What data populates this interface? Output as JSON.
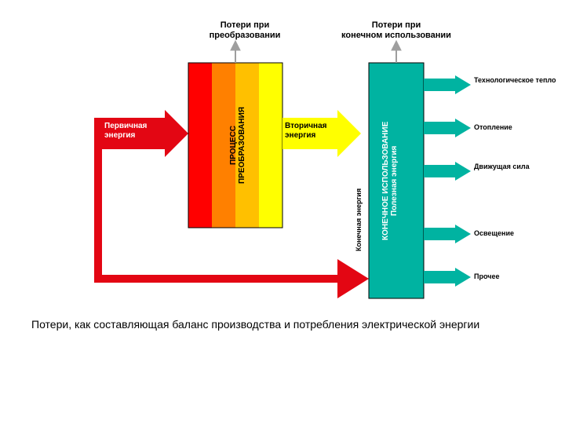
{
  "type": "infographic",
  "background_color": "#ffffff",
  "caption": "Потери, как составляющая баланс производства и потребления электрической энергии",
  "caption_fontsize": 14,
  "colors": {
    "red_dark": "#e30613",
    "red": "#ff0000",
    "orange": "#ff8000",
    "yellow_orange": "#ffc000",
    "yellow": "#ffff00",
    "teal": "#00b3a1",
    "teal_dark": "#008f82",
    "black": "#000000",
    "grey_arrow": "#9e9e9e"
  },
  "loss_labels": {
    "transform": "Потери при\nпреобразовании",
    "enduse": "Потери при\nконечном использовании"
  },
  "input_arrow": {
    "label": "Первичная\nэнергия",
    "color": "#e30613",
    "text_color": "#ffffff",
    "fontsize": 10
  },
  "transform_box": {
    "title_line1": "ПРОЦЕСС",
    "title_line2": "ПРЕОБРАЗОВАНИЯ",
    "stripe_colors": [
      "#ff0000",
      "#ff8000",
      "#ffc000",
      "#ffff00"
    ],
    "text_color": "#000000",
    "fontsize": 10
  },
  "secondary_arrow": {
    "label": "Вторичная\nэнергия",
    "color": "#ffff00",
    "text_color": "#000000",
    "fontsize": 10
  },
  "final_vertical": {
    "label": "Конечная энергия",
    "color": "#00b3a1",
    "text_color": "#000000",
    "fontsize": 9
  },
  "enduse_box": {
    "title_line1": "КОНЕЧНОЕ ИСПОЛЬЗОВАНИЕ",
    "title_line2": "Полезная энергия",
    "fill": "#00b3a1",
    "text_color": "#ffffff",
    "fontsize": 10
  },
  "outputs": [
    {
      "label": "Технологическое тепло"
    },
    {
      "label": "Отопление"
    },
    {
      "label": "Движущая сила"
    },
    {
      "label": "Освещение"
    },
    {
      "label": "Прочее"
    }
  ],
  "output_style": {
    "color": "#00b3a1",
    "text_color": "#000000",
    "fontsize": 9
  }
}
